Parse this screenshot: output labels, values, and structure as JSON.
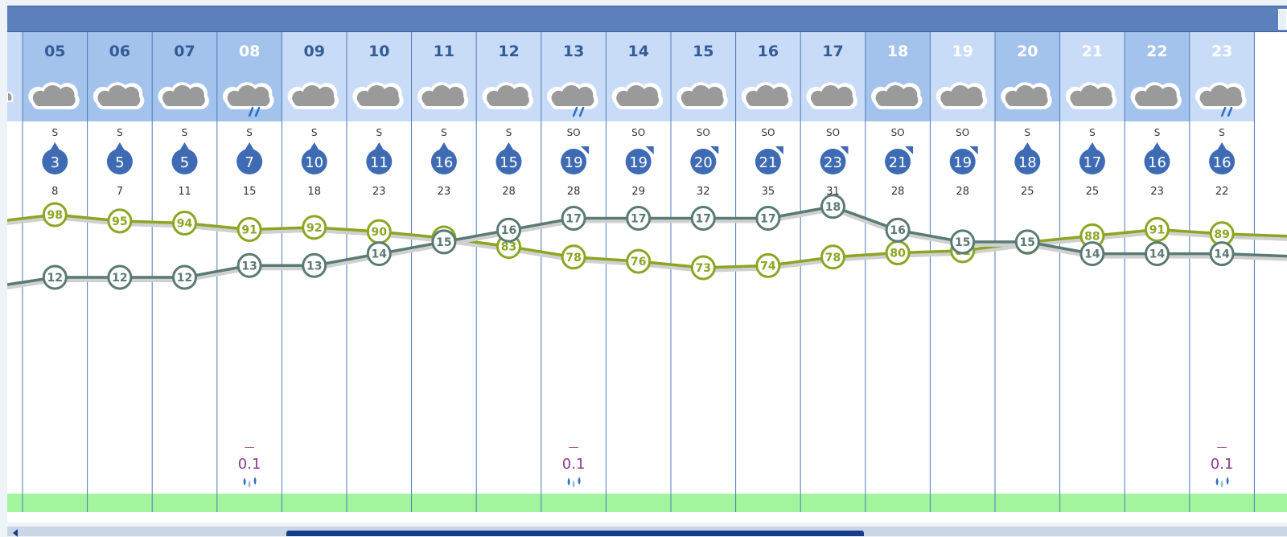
{
  "chart_data": {
    "type": "line",
    "hours": [
      "05",
      "06",
      "07",
      "08",
      "09",
      "10",
      "11",
      "12",
      "13",
      "14",
      "15",
      "16",
      "17",
      "18",
      "19",
      "20",
      "21",
      "22",
      "23"
    ],
    "sky": [
      "cloudy",
      "cloudy",
      "cloudy",
      "rain",
      "cloudy",
      "cloudy",
      "cloudy",
      "cloudy",
      "rain",
      "cloudy",
      "cloudy",
      "cloudy",
      "cloudy",
      "cloudy",
      "cloudy",
      "cloudy",
      "cloudy",
      "cloudy",
      "rain"
    ],
    "wind_direction": [
      "S",
      "S",
      "S",
      "S",
      "S",
      "S",
      "S",
      "S",
      "SO",
      "SO",
      "SO",
      "SO",
      "SO",
      "SO",
      "SO",
      "S",
      "S",
      "S",
      "S"
    ],
    "wind_speed": [
      3,
      5,
      5,
      7,
      10,
      11,
      16,
      15,
      19,
      19,
      20,
      21,
      23,
      21,
      19,
      18,
      17,
      16,
      16
    ],
    "wind_gust": [
      8,
      7,
      11,
      15,
      18,
      23,
      23,
      28,
      28,
      29,
      32,
      35,
      31,
      28,
      28,
      25,
      25,
      23,
      22
    ],
    "series": [
      {
        "key": "humidity",
        "color": "#8aa622",
        "values": [
          98,
          95,
          94,
          91,
          92,
          90,
          87,
          83,
          78,
          76,
          73,
          74,
          78,
          80,
          81,
          85,
          88,
          91,
          89
        ]
      },
      {
        "key": "temperature",
        "color": "#5a7a74",
        "values": [
          12,
          12,
          12,
          13,
          13,
          14,
          15,
          16,
          17,
          17,
          17,
          17,
          18,
          16,
          15,
          15,
          14,
          14,
          14
        ]
      }
    ],
    "precipitation": [
      {
        "hour": "08",
        "marker": "—",
        "value": "0.1"
      },
      {
        "hour": "13",
        "marker": "—",
        "value": "0.1"
      },
      {
        "hour": "23",
        "marker": "—",
        "value": "0.1"
      }
    ],
    "colors": {
      "header_bar": "#5b80bc",
      "day_column_bg": "#c9dcf7",
      "night_column_bg": "#a3c3ec",
      "wind_badge": "#3e6bb3",
      "precip_text": "#8a3c8a",
      "precip_band": "#a3f59d",
      "column_border": "#4d79bb"
    }
  }
}
